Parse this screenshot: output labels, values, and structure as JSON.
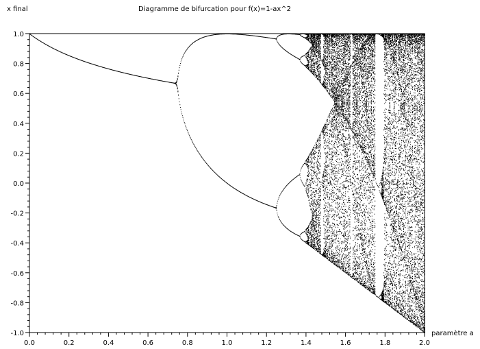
{
  "chart_data": {
    "type": "scatter",
    "title": "Diagramme de bifurcation pour f(x)=1-ax^2",
    "xlabel": "paramètre a",
    "ylabel": "x final",
    "xlim": [
      0.0,
      2.0
    ],
    "ylim": [
      -1.0,
      1.0
    ],
    "x_ticks": [
      "0.0",
      "0.2",
      "0.4",
      "0.6",
      "0.8",
      "1.0",
      "1.2",
      "1.4",
      "1.6",
      "1.8",
      "2.0"
    ],
    "y_ticks": [
      "1.0",
      "0.8",
      "0.6",
      "0.4",
      "0.2",
      "0.0",
      "-0.2",
      "-0.4",
      "-0.6",
      "-0.8",
      "-1.0"
    ],
    "map": "f(x)=1-ax^2",
    "color": "#000000",
    "grid": false
  }
}
